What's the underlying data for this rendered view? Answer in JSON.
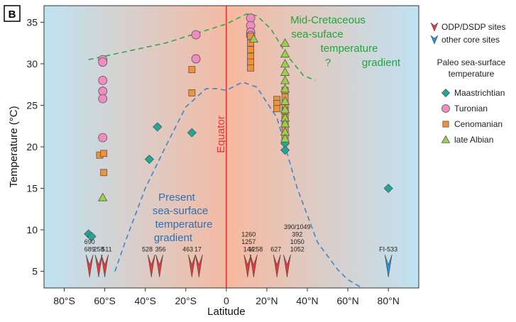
{
  "chart_data": {
    "type": "scatter",
    "panel_label": "B",
    "xlabel": "Latitude",
    "ylabel": "Temperature (°C)",
    "xlim": [
      -90,
      95
    ],
    "ylim": [
      3,
      37
    ],
    "x_ticks": [
      {
        "value": -80,
        "label": "80°S"
      },
      {
        "value": -60,
        "label": "60°S"
      },
      {
        "value": -40,
        "label": "40°S"
      },
      {
        "value": -20,
        "label": "20°S"
      },
      {
        "value": 0,
        "label": "0"
      },
      {
        "value": 20,
        "label": "20°N"
      },
      {
        "value": 40,
        "label": "40°N"
      },
      {
        "value": 60,
        "label": "60°N"
      },
      {
        "value": 80,
        "label": "80°N"
      }
    ],
    "y_ticks": [
      5,
      10,
      15,
      20,
      25,
      30,
      35
    ],
    "equator_label": "Equator",
    "colors": {
      "maastrichtian": "#1fa89a",
      "turonian": "#f08cc0",
      "cenomanian": "#f0923a",
      "late_albian": "#9bd04a",
      "odp_marker": "#e23b3b",
      "other_marker": "#2a8fd6",
      "equator_line": "#e8323a",
      "mid_cretaceous_line": "#2aaa4a",
      "present_line": "#3a86d0",
      "bg_left": "#bfe2f2",
      "bg_center": "#f6b9a0"
    },
    "series": [
      {
        "name": "Maastrichtian",
        "marker": "diamond",
        "points": [
          {
            "x": -68,
            "y": 9.5
          },
          {
            "x": -66.5,
            "y": 9.2
          },
          {
            "x": -38,
            "y": 18.5
          },
          {
            "x": -34,
            "y": 22.4
          },
          {
            "x": -17,
            "y": 21.7
          },
          {
            "x": 29,
            "y": 20.4
          },
          {
            "x": 29,
            "y": 19.6
          },
          {
            "x": 80,
            "y": 15
          }
        ]
      },
      {
        "name": "Turonian",
        "marker": "circle",
        "points": [
          {
            "x": -61,
            "y": 30.5
          },
          {
            "x": -61,
            "y": 30.2
          },
          {
            "x": -61,
            "y": 28
          },
          {
            "x": -61,
            "y": 26.7
          },
          {
            "x": -61,
            "y": 25.8
          },
          {
            "x": -61,
            "y": 21.1
          },
          {
            "x": -15,
            "y": 33.5
          },
          {
            "x": -15,
            "y": 30.6
          },
          {
            "x": 12,
            "y": 35.5
          },
          {
            "x": 12,
            "y": 34.6
          },
          {
            "x": 12,
            "y": 33.8
          },
          {
            "x": 12,
            "y": 33.4
          }
        ]
      },
      {
        "name": "Cenomanian",
        "marker": "square",
        "points": [
          {
            "x": -62.5,
            "y": 19
          },
          {
            "x": -60.5,
            "y": 19.2
          },
          {
            "x": -60.5,
            "y": 16.9
          },
          {
            "x": -17,
            "y": 29.3
          },
          {
            "x": -17,
            "y": 26.5
          },
          {
            "x": 12,
            "y": 33.3
          },
          {
            "x": 12,
            "y": 32.5
          },
          {
            "x": 12,
            "y": 31.7
          },
          {
            "x": 12,
            "y": 30.9
          },
          {
            "x": 12,
            "y": 30.2
          },
          {
            "x": 12,
            "y": 29.5
          },
          {
            "x": 25,
            "y": 25.7
          },
          {
            "x": 25,
            "y": 25.2
          },
          {
            "x": 25,
            "y": 24.6
          },
          {
            "x": 29,
            "y": 26.8
          },
          {
            "x": 29,
            "y": 26
          },
          {
            "x": 29,
            "y": 25.1
          },
          {
            "x": 29,
            "y": 24.3
          },
          {
            "x": 29,
            "y": 23.5
          },
          {
            "x": 29,
            "y": 22.7
          },
          {
            "x": 29,
            "y": 22
          },
          {
            "x": 29,
            "y": 21.3
          }
        ]
      },
      {
        "name": "late Albian",
        "marker": "triangle",
        "points": [
          {
            "x": -61,
            "y": 13.9
          },
          {
            "x": 13.5,
            "y": 33
          },
          {
            "x": 29,
            "y": 32.5
          },
          {
            "x": 29,
            "y": 31.2
          },
          {
            "x": 29,
            "y": 30
          },
          {
            "x": 29,
            "y": 29
          },
          {
            "x": 29,
            "y": 28
          },
          {
            "x": 29,
            "y": 27
          },
          {
            "x": 29,
            "y": 25.5
          },
          {
            "x": 29,
            "y": 24.5
          },
          {
            "x": 29,
            "y": 23.5
          },
          {
            "x": 29,
            "y": 22.8
          },
          {
            "x": 29,
            "y": 21.8
          },
          {
            "x": 29,
            "y": 21
          }
        ]
      }
    ],
    "curves": [
      {
        "name": "Mid-Cretaceous sea-surface temperature gradient",
        "style": "dashed",
        "color_key": "mid_cretaceous_line",
        "points": [
          [
            -68,
            30.5
          ],
          [
            -30,
            32.5
          ],
          [
            0,
            34.8
          ],
          [
            10,
            36
          ],
          [
            15,
            35.8
          ],
          [
            22,
            34.2
          ],
          [
            30,
            31
          ],
          [
            38,
            28.6
          ],
          [
            44,
            28
          ]
        ]
      },
      {
        "name": "Present sea-surface temperature gradient",
        "style": "dashed",
        "color_key": "present_line",
        "points": [
          [
            -55,
            5
          ],
          [
            -50,
            8.5
          ],
          [
            -40,
            15
          ],
          [
            -30,
            20
          ],
          [
            -20,
            24.8
          ],
          [
            -10,
            27
          ],
          [
            -5,
            27
          ],
          [
            0,
            26.8
          ],
          [
            8,
            27.8
          ],
          [
            15,
            27.2
          ],
          [
            25,
            23.5
          ],
          [
            35,
            15
          ],
          [
            45,
            8.5
          ],
          [
            55,
            5.2
          ],
          [
            60,
            4
          ],
          [
            67,
            3
          ]
        ]
      }
    ],
    "annotations": {
      "mid_cretaceous": [
        "Mid-Cretaceous",
        "sea-suface",
        "temperature",
        "gradient"
      ],
      "question_mark": "?",
      "present": [
        "Present",
        "sea-surface",
        "temperature",
        "gradient"
      ]
    },
    "core_sites": [
      {
        "type": "odp",
        "x": -67.5,
        "label": [
          "690",
          "689"
        ],
        "label_x": -67.5
      },
      {
        "type": "odp",
        "x": -63,
        "label": [
          "258"
        ],
        "label_x": -63
      },
      {
        "type": "odp",
        "x": -60,
        "label": [
          "511"
        ],
        "label_x": -59
      },
      {
        "type": "odp",
        "x": -37,
        "label": [
          "528"
        ],
        "label_x": -39
      },
      {
        "type": "odp",
        "x": -33,
        "label": [
          "356"
        ],
        "label_x": -32.5
      },
      {
        "type": "odp",
        "x": -17,
        "label": [
          "463"
        ],
        "label_x": -19
      },
      {
        "type": "odp",
        "x": -13.5,
        "label": [
          "17"
        ],
        "label_x": -14
      },
      {
        "type": "odp",
        "x": 10.5,
        "label": [
          "1260",
          "1257",
          "144"
        ],
        "label_x": 11
      },
      {
        "type": "odp",
        "x": 13.5,
        "label": [
          "1258"
        ],
        "label_x": 14.5
      },
      {
        "type": "odp",
        "x": 25,
        "label": [
          "627"
        ],
        "label_x": 24.5
      },
      {
        "type": "odp",
        "x": 30,
        "label": [
          "390/1049",
          "392",
          "1050",
          "1052"
        ],
        "label_x": 35
      },
      {
        "type": "other",
        "x": 80,
        "label": [
          "FI-533"
        ],
        "label_x": 80
      }
    ],
    "legend": {
      "marker_items": [
        {
          "label": "ODP/DSDP sites",
          "color_key": "odp_marker"
        },
        {
          "label": "other core sites",
          "color_key": "other_marker"
        }
      ],
      "title": [
        "Paleo sea-surface",
        "temperature"
      ],
      "items": [
        {
          "label": "Maastrichtian",
          "marker": "diamond",
          "color_key": "maastrichtian"
        },
        {
          "label": "Turonian",
          "marker": "circle",
          "color_key": "turonian"
        },
        {
          "label": "Cenomanian",
          "marker": "square",
          "color_key": "cenomanian"
        },
        {
          "label": "late Albian",
          "marker": "triangle",
          "color_key": "late_albian"
        }
      ]
    }
  }
}
